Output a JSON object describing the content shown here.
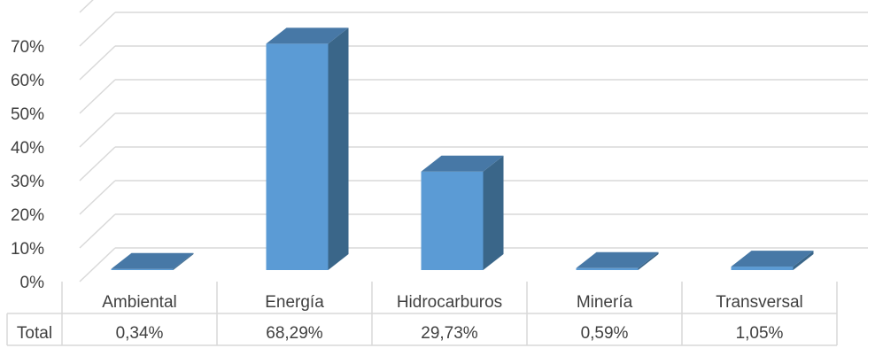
{
  "chart_data": {
    "type": "bar",
    "style": "3d-column-with-data-table",
    "categories": [
      "Ambiental",
      "Energía",
      "Hidrocarburos",
      "Minería",
      "Transversal"
    ],
    "series": [
      {
        "name": "Total",
        "values": [
          0.34,
          68.29,
          29.73,
          0.59,
          1.05
        ]
      }
    ],
    "value_unit": "%",
    "yticks": [
      "0%",
      "10%",
      "20%",
      "30%",
      "40%",
      "50%",
      "60%",
      "70%"
    ],
    "ylim": [
      0,
      80
    ],
    "table": {
      "row_label": "Total",
      "values": [
        "0,34%",
        "68,29%",
        "29,73%",
        "0,59%",
        "1,05%"
      ]
    },
    "grid": true,
    "legend": "none",
    "colors": {
      "bar_front": "#5b9bd5",
      "bar_side": "#3a6689",
      "bar_top": "#4778a6",
      "grid": "#d9d9d9",
      "text": "#404040"
    }
  }
}
